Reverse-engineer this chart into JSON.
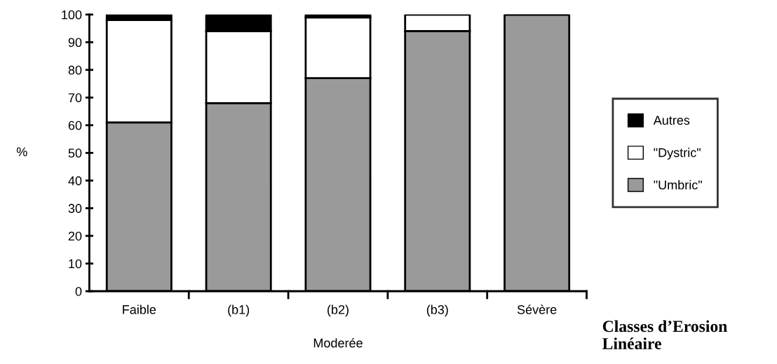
{
  "chart_data": {
    "type": "bar",
    "stacked": true,
    "ylabel": "%",
    "xlabel": "Classes d’Erosion Linéaire",
    "categories": [
      "Faible",
      "(b1)",
      "(b2)",
      "(b3)",
      "Sévère"
    ],
    "series": [
      {
        "name": "\"Umbric\"",
        "color": "#9a9a9a",
        "values": [
          61,
          68,
          77,
          94,
          100
        ]
      },
      {
        "name": "\"Dystric\"",
        "color": "#ffffff",
        "values": [
          37,
          26,
          22,
          6,
          0
        ]
      },
      {
        "name": "Autres",
        "color": "#000000",
        "values": [
          2,
          6,
          1,
          0,
          0
        ]
      }
    ],
    "annotations": [
      "Moderée"
    ],
    "ylim": [
      0,
      100
    ],
    "yticks": [
      0,
      10,
      20,
      30,
      40,
      50,
      60,
      70,
      80,
      90,
      100
    ],
    "grid": false,
    "legend": "right"
  }
}
